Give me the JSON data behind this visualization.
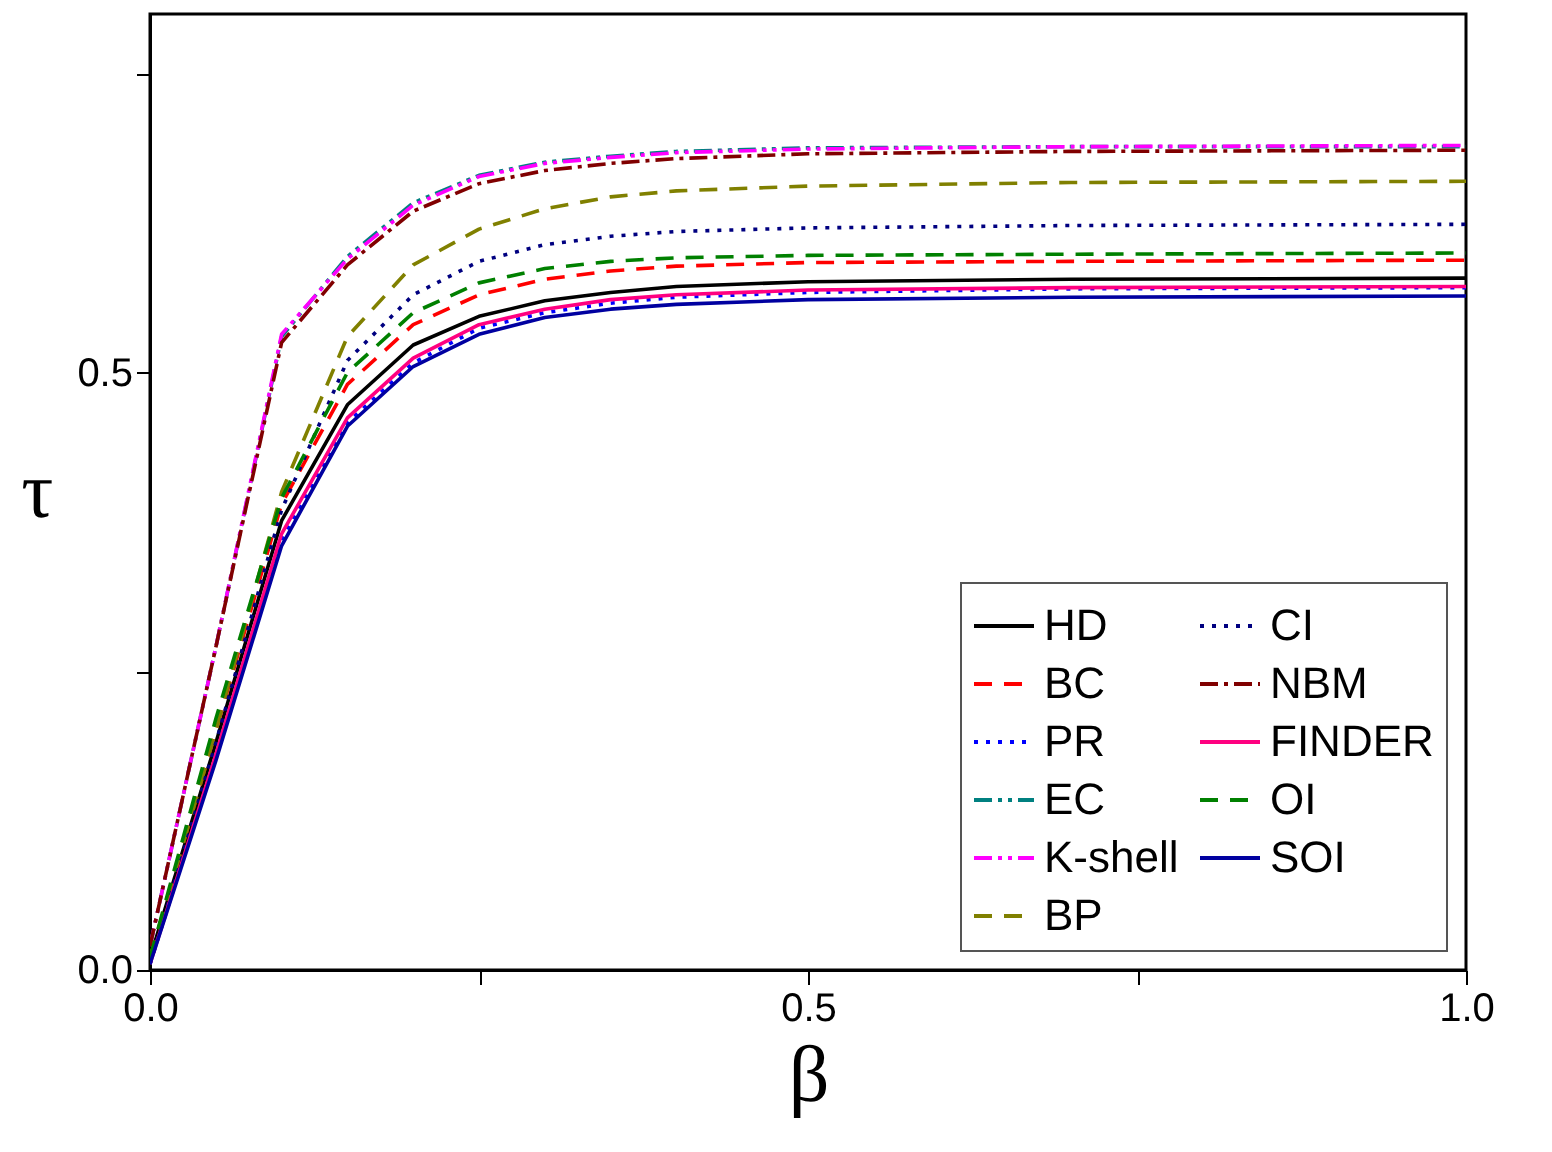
{
  "chart_data": {
    "type": "line",
    "xlabel": "β",
    "ylabel": "τ",
    "x": [
      0,
      0.05,
      0.1,
      0.15,
      0.2,
      0.25,
      0.3,
      0.35,
      0.4,
      0.5,
      0.7,
      1.0
    ],
    "xlim": [
      0,
      1
    ],
    "ylim": [
      0,
      0.8
    ],
    "xticks": [
      {
        "value": 0,
        "label": "0.0"
      },
      {
        "value": 0.25,
        "label": null
      },
      0.5,
      {
        "value": 0.75,
        "label": null
      },
      {
        "value": 1,
        "label": "1.0"
      }
    ],
    "yticks": [
      {
        "value": 0,
        "label": "0.0"
      },
      {
        "value": 0.25,
        "label": null
      },
      0.5,
      {
        "value": 0.75,
        "label": null
      }
    ],
    "grid": false,
    "legend": "bottom right",
    "marker": "none",
    "series": [
      {
        "name": "HD",
        "color": "#000000",
        "line_style": "solid",
        "values": [
          0.01,
          0.19,
          0.376,
          0.473,
          0.523,
          0.547,
          0.56,
          0.567,
          0.572,
          0.576,
          0.578,
          0.579
        ]
      },
      {
        "name": "BC",
        "color": "#ff0000",
        "line_style": "dashed",
        "values": [
          0.01,
          0.2,
          0.39,
          0.49,
          0.54,
          0.565,
          0.578,
          0.585,
          0.589,
          0.592,
          0.593,
          0.594
        ]
      },
      {
        "name": "PR",
        "color": "#0000ff",
        "line_style": "dotted",
        "values": [
          0.005,
          0.18,
          0.36,
          0.458,
          0.508,
          0.537,
          0.55,
          0.558,
          0.563,
          0.567,
          0.57,
          0.571
        ]
      },
      {
        "name": "EC",
        "color": "#008080",
        "line_style": "dashdotdot",
        "values": [
          0.02,
          0.27,
          0.53,
          0.597,
          0.642,
          0.665,
          0.676,
          0.681,
          0.685,
          0.688,
          0.689,
          0.689
        ]
      },
      {
        "name": "K-shell",
        "color": "#ff00ff",
        "line_style": "dashdotdot",
        "values": [
          0.02,
          0.27,
          0.532,
          0.595,
          0.64,
          0.664,
          0.675,
          0.68,
          0.684,
          0.687,
          0.689,
          0.69
        ]
      },
      {
        "name": "BP",
        "color": "#808000",
        "line_style": "dashed",
        "values": [
          0.01,
          0.2,
          0.4,
          0.53,
          0.59,
          0.62,
          0.637,
          0.647,
          0.652,
          0.656,
          0.659,
          0.66
        ]
      },
      {
        "name": "CI",
        "color": "#000080",
        "line_style": "dotted",
        "values": [
          0.005,
          0.19,
          0.385,
          0.51,
          0.565,
          0.593,
          0.607,
          0.614,
          0.618,
          0.621,
          0.623,
          0.624
        ]
      },
      {
        "name": "NBM",
        "color": "#800000",
        "line_style": "dashdot",
        "values": [
          0.02,
          0.27,
          0.525,
          0.59,
          0.635,
          0.658,
          0.669,
          0.675,
          0.679,
          0.683,
          0.685,
          0.686
        ]
      },
      {
        "name": "FINDER",
        "color": "#ff0080",
        "line_style": "solid",
        "values": [
          0.005,
          0.18,
          0.365,
          0.462,
          0.512,
          0.54,
          0.553,
          0.561,
          0.565,
          0.569,
          0.571,
          0.572
        ]
      },
      {
        "name": "OI",
        "color": "#008000",
        "line_style": "dashed",
        "values": [
          0.01,
          0.21,
          0.395,
          0.5,
          0.55,
          0.575,
          0.587,
          0.593,
          0.596,
          0.598,
          0.599,
          0.6
        ]
      },
      {
        "name": "SOI",
        "color": "#0000a0",
        "line_style": "solid",
        "values": [
          0.005,
          0.175,
          0.355,
          0.455,
          0.505,
          0.532,
          0.546,
          0.553,
          0.557,
          0.561,
          0.563,
          0.564
        ]
      }
    ]
  }
}
